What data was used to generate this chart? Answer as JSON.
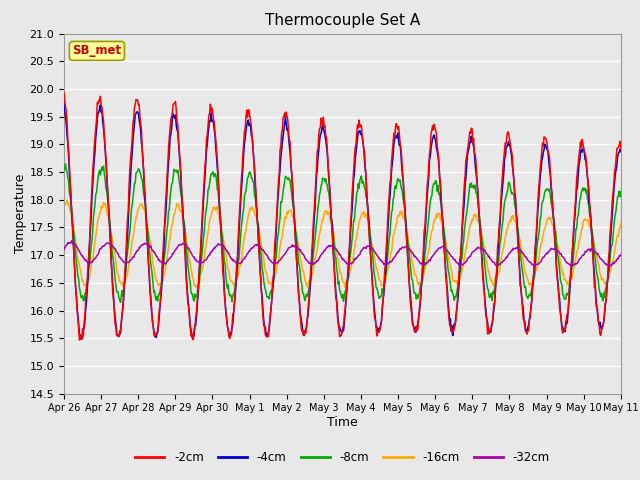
{
  "title": "Thermocouple Set A",
  "xlabel": "Time",
  "ylabel": "Temperature",
  "ylim": [
    14.5,
    21.0
  ],
  "series_labels": [
    "-2cm",
    "-4cm",
    "-8cm",
    "-16cm",
    "-32cm"
  ],
  "series_colors": [
    "#ff0000",
    "#0000cc",
    "#00aa00",
    "#ffaa00",
    "#aa00aa"
  ],
  "annotation_text": "SB_met",
  "annotation_color": "#cc0000",
  "annotation_bg": "#ffff99",
  "plot_bg": "#e8e8e8",
  "grid_color": "#ffffff",
  "xtick_labels": [
    "Apr 26",
    "Apr 27",
    "Apr 28",
    "Apr 29",
    "Apr 30",
    "May 1",
    "May 2",
    "May 3",
    "May 4",
    "May 5",
    "May 6",
    "May 7",
    "May 8",
    "May 9",
    "May 10",
    "May 11"
  ],
  "n_days": 16
}
